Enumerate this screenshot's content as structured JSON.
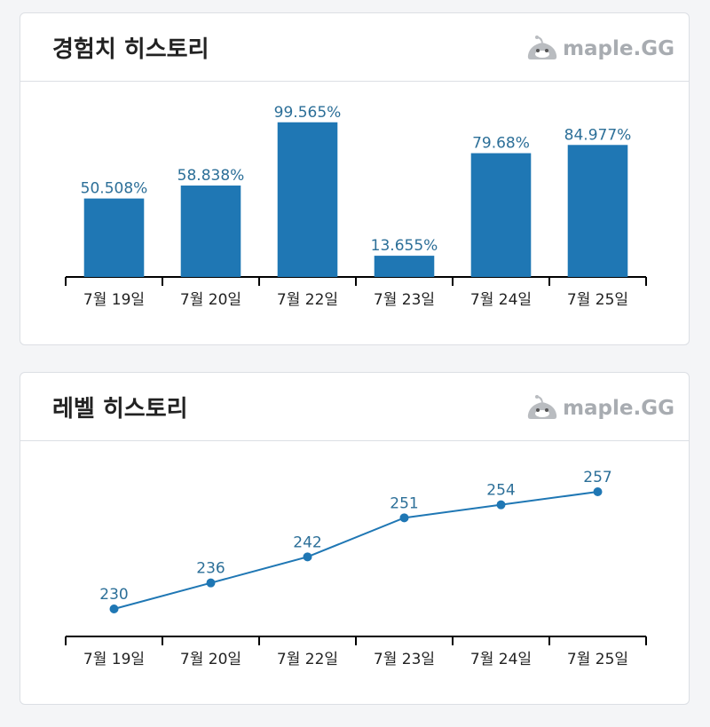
{
  "brand": {
    "name": "maple.GG",
    "icon": "slime-mascot-icon",
    "color": "#a8acb1"
  },
  "colors": {
    "accent": "#1f77b4",
    "label": "#2c6f98",
    "axis": "#000000"
  },
  "chart_data": [
    {
      "type": "bar",
      "title": "경험치 히스토리",
      "categories": [
        "7월 19일",
        "7월 20일",
        "7월 22일",
        "7월 23일",
        "7월 24일",
        "7월 25일"
      ],
      "values": [
        50.508,
        58.838,
        99.565,
        13.655,
        79.68,
        84.977
      ],
      "value_labels": [
        "50.508%",
        "58.838%",
        "99.565%",
        "13.655%",
        "79.68%",
        "84.977%"
      ],
      "ylim": [
        0,
        100
      ],
      "xlabel": "",
      "ylabel": "",
      "grid": false,
      "legend": "none"
    },
    {
      "type": "line",
      "title": "레벨 히스토리",
      "categories": [
        "7월 19일",
        "7월 20일",
        "7월 22일",
        "7월 23일",
        "7월 24일",
        "7월 25일"
      ],
      "values": [
        230,
        236,
        242,
        251,
        254,
        257
      ],
      "value_labels": [
        "230",
        "236",
        "242",
        "251",
        "254",
        "257"
      ],
      "ylim": [
        230,
        257
      ],
      "xlabel": "",
      "ylabel": "",
      "grid": false,
      "legend": "none"
    }
  ]
}
